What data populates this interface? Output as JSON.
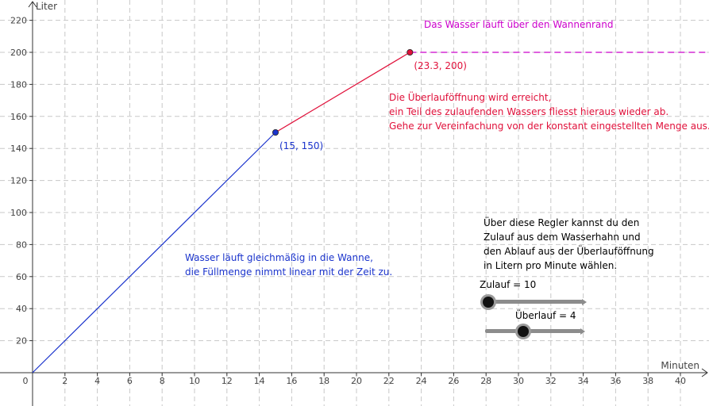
{
  "chart_data": {
    "type": "line",
    "xlabel": "Minuten",
    "ylabel": "Liter",
    "xlim": [
      0,
      42
    ],
    "ylim": [
      0,
      225
    ],
    "x_ticks": [
      2,
      4,
      6,
      8,
      10,
      12,
      14,
      16,
      18,
      20,
      22,
      24,
      26,
      28,
      30,
      32,
      34,
      36,
      38,
      40
    ],
    "y_ticks": [
      20,
      40,
      60,
      80,
      100,
      120,
      140,
      160,
      180,
      200,
      220
    ],
    "origin_label": "0",
    "grid": true,
    "series": [
      {
        "points": [
          [
            0,
            0
          ],
          [
            15,
            150
          ]
        ],
        "color": "#1a33cc",
        "style": "solid"
      },
      {
        "points": [
          [
            15,
            150
          ],
          [
            23.3,
            200
          ]
        ],
        "color": "#e0103a",
        "style": "solid"
      },
      {
        "points": [
          [
            23.3,
            200
          ],
          [
            42,
            200
          ]
        ],
        "color": "#cc00cc",
        "style": "dashed"
      }
    ],
    "points": [
      {
        "x": 15,
        "y": 150,
        "label": "(15, 150)",
        "color": "#1a33cc"
      },
      {
        "x": 23.3,
        "y": 200,
        "label": "(23.3, 200)",
        "color": "#e0103a"
      }
    ]
  },
  "annotations": {
    "overflow_title": "Das Wasser läuft über den Wannenrand",
    "overflow_title_color": "#cc00cc",
    "overflow_text": [
      "Die Überlauföffnung wird erreicht,",
      "ein Teil des zulaufenden Wassers fliesst hieraus wieder ab.",
      "Gehe zur Vereinfachung von der konstant eingestellten Menge aus."
    ],
    "overflow_text_color": "#e0103a",
    "linear_text": [
      "Wasser läuft gleichmäßig in die Wanne,",
      "die Füllmenge nimmt linear mit der Zeit zu."
    ],
    "linear_text_color": "#1a33cc",
    "instruction_text": [
      "Über diese Regler kannst du den",
      "Zulauf aus dem Wasserhahn und",
      "den Ablauf aus der Überlauföffnung",
      "in Litern pro Minute wählen."
    ]
  },
  "sliders": {
    "zulauf": {
      "label": "Zulauf = 10",
      "value": 10,
      "fraction": 0.0
    },
    "ueberlauf": {
      "label": "Überlauf = 4",
      "value": 4,
      "fraction": 0.4
    }
  }
}
